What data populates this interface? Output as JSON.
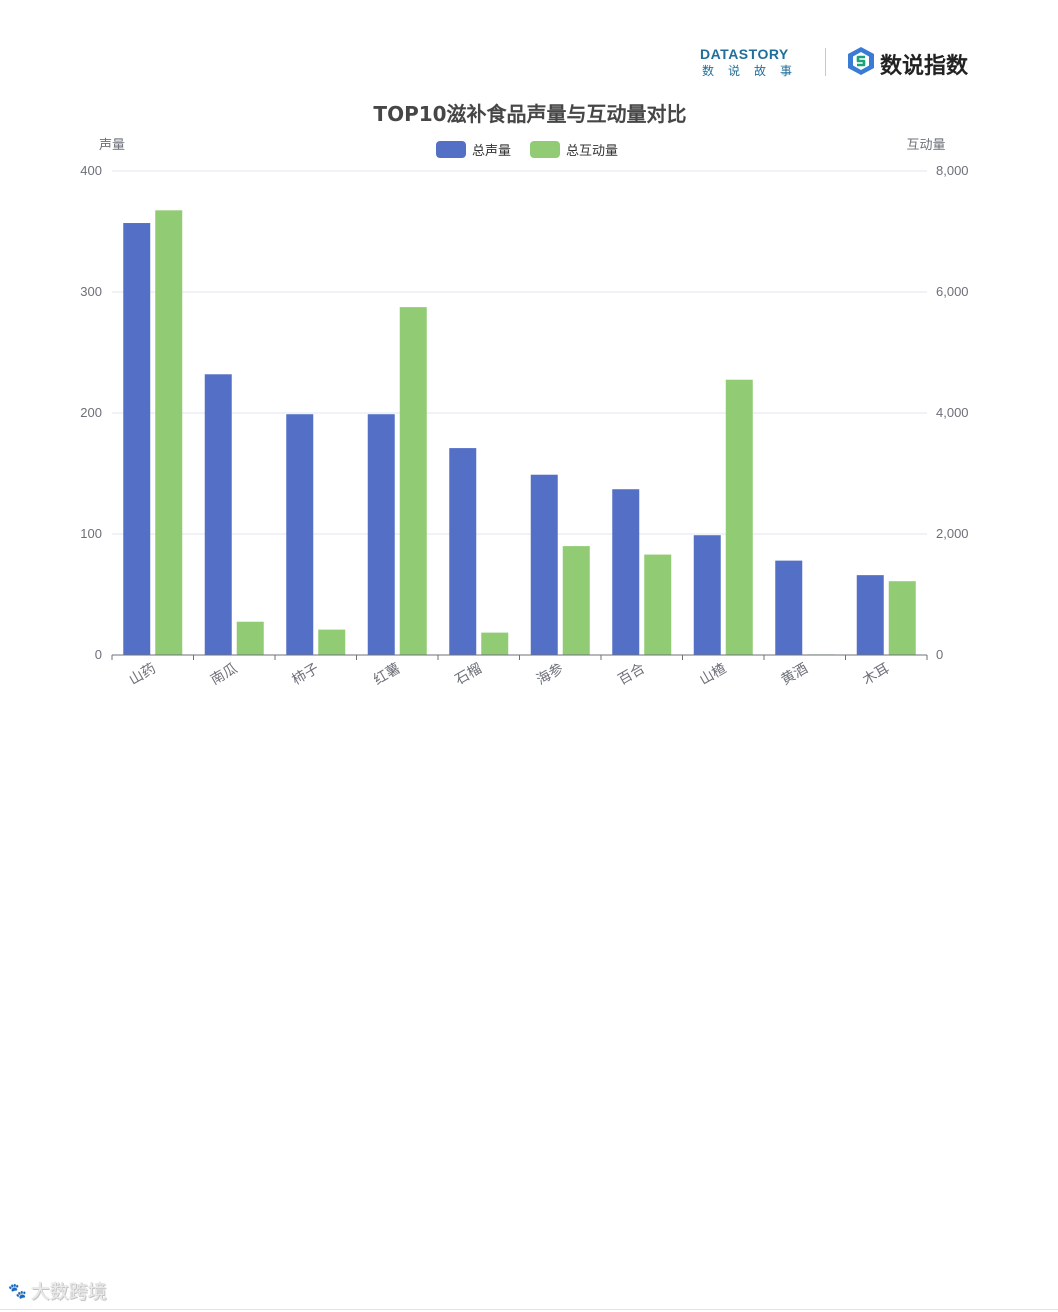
{
  "branding": {
    "datastory_en": "DATASTORY",
    "datastory_zh": "数说故事",
    "shuoshuo": "数说指数"
  },
  "watermark": {
    "icon": "baidu-logo-icon",
    "text": "大数跨境"
  },
  "colors": {
    "voice": "#5470c6",
    "interaction": "#91cc75",
    "grid": "#e0e6f1",
    "axis": "#6e7079",
    "title": "#464646"
  },
  "chart_data": {
    "type": "bar",
    "title": "TOP10滋补食品声量与互动量对比",
    "ylabel_left": "声量",
    "ylabel_right": "互动量",
    "ylim_left": [
      0,
      400
    ],
    "ylim_right": [
      0,
      8000
    ],
    "yticks_left": [
      "0",
      "100",
      "200",
      "300",
      "400"
    ],
    "yticks_right": [
      "0",
      "2,000",
      "4,000",
      "6,000",
      "8,000"
    ],
    "grid": true,
    "legend_position": "top-center",
    "categories": [
      "山药",
      "南瓜",
      "柿子",
      "红薯",
      "石榴",
      "海参",
      "百合",
      "山楂",
      "黄酒",
      "木耳"
    ],
    "series": [
      {
        "name": "总声量",
        "axis": "left",
        "color": "#5470c6",
        "values": [
          357,
          232,
          199,
          199,
          171,
          149,
          137,
          99,
          78,
          66
        ]
      },
      {
        "name": "总互动量",
        "axis": "right",
        "color": "#91cc75",
        "values": [
          7350,
          550,
          420,
          5750,
          370,
          1800,
          1660,
          4550,
          10,
          1220
        ]
      }
    ]
  }
}
